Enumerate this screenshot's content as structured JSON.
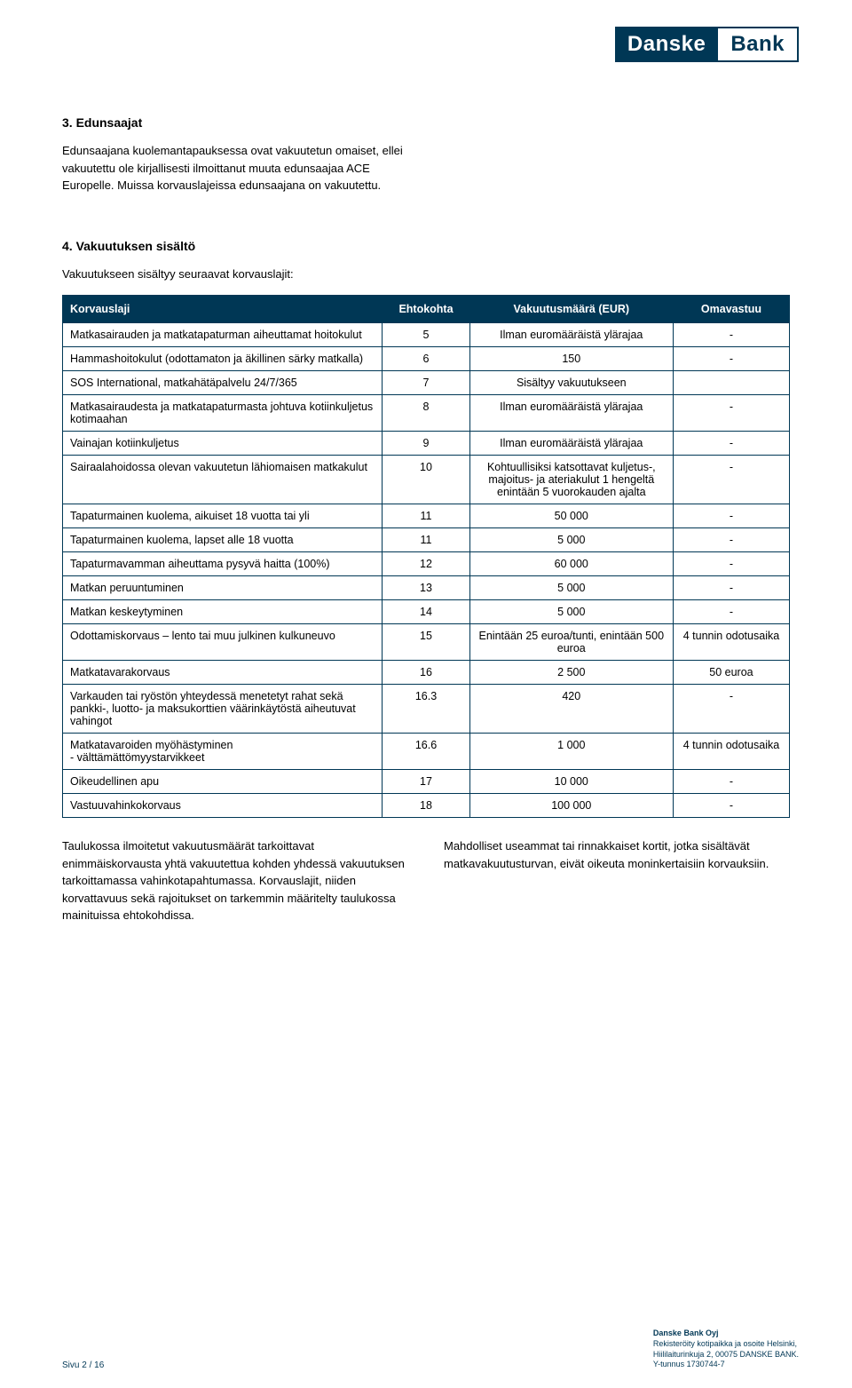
{
  "logo": {
    "left": "Danske",
    "right": "Bank"
  },
  "section3": {
    "heading": "3. Edunsaajat",
    "body": "Edunsaajana kuolemantapauksessa ovat vakuutetun omaiset, ellei vakuutettu ole kirjallisesti ilmoittanut muuta edunsaajaa ACE Europelle. Muissa korvauslajeissa edunsaajana on vakuutettu."
  },
  "section4": {
    "heading": "4. Vakuutuksen sisältö",
    "intro": "Vakuutukseen sisältyy seuraavat korvauslajit:"
  },
  "table": {
    "headers": [
      "Korvauslaji",
      "Ehtokohta",
      "Vakuutusmäärä (EUR)",
      "Omavastuu"
    ],
    "rows": [
      [
        "Matkasairauden ja matkatapaturman aiheuttamat hoitokulut",
        "5",
        "Ilman euromääräistä ylärajaa",
        "-"
      ],
      [
        "Hammashoitokulut (odottamaton ja äkillinen särky matkalla)",
        "6",
        "150",
        "-"
      ],
      [
        "SOS International, matkahätäpalvelu 24/7/365",
        "7",
        "Sisältyy vakuutukseen",
        ""
      ],
      [
        "Matkasairaudesta ja matkatapaturmasta johtuva kotiinkuljetus kotimaahan",
        "8",
        "Ilman euromääräistä ylärajaa",
        "-"
      ],
      [
        "Vainajan kotiinkuljetus",
        "9",
        "Ilman euromääräistä ylärajaa",
        "-"
      ],
      [
        "Sairaalahoidossa olevan vakuutetun lähiomaisen matkakulut",
        "10",
        "Kohtuullisiksi katsottavat kuljetus-, majoitus- ja ateriakulut 1 hengeltä enintään 5 vuorokauden ajalta",
        "-"
      ],
      [
        "Tapaturmainen kuolema, aikuiset 18 vuotta tai yli",
        "11",
        "50 000",
        "-"
      ],
      [
        "Tapaturmainen kuolema, lapset alle 18 vuotta",
        "11",
        "5 000",
        "-"
      ],
      [
        "Tapaturmavamman aiheuttama pysyvä haitta (100%)",
        "12",
        "60 000",
        "-"
      ],
      [
        "Matkan peruuntuminen",
        "13",
        "5 000",
        "-"
      ],
      [
        "Matkan keskeytyminen",
        "14",
        "5 000",
        "-"
      ],
      [
        "Odottamiskorvaus – lento tai muu julkinen kulkuneuvo",
        "15",
        "Enintään 25 euroa/tunti, enintään 500 euroa",
        "4 tunnin odotusaika"
      ],
      [
        "Matkatavarakorvaus",
        "16",
        "2 500",
        "50 euroa"
      ],
      [
        "Varkauden tai ryöstön yhteydessä menetetyt rahat sekä pankki-, luotto- ja maksukorttien väärinkäytöstä aiheutuvat vahingot",
        "16.3",
        "420",
        "-"
      ],
      [
        "Matkatavaroiden myöhästyminen\n- välttämättömyystarvikkeet",
        "16.6",
        "1 000",
        "4 tunnin odotusaika"
      ],
      [
        "Oikeudellinen apu",
        "17",
        "10 000",
        "-"
      ],
      [
        "Vastuuvahinkokorvaus",
        "18",
        "100 000",
        "-"
      ]
    ]
  },
  "belowTable": {
    "left": "Taulukossa ilmoitetut vakuutusmäärät tarkoittavat enimmäiskorvausta yhtä vakuutettua kohden yhdessä vakuutuksen tarkoittamassa vahinkotapahtumassa. Korvauslajit, niiden korvattavuus sekä rajoitukset on tarkemmin määritelty taulukossa mainituissa ehtokohdissa.",
    "right": "Mahdolliset useammat tai rinnakkaiset kortit, jotka sisältävät matkavakuutusturvan, eivät oikeuta moninkertaisiin korvauksiin."
  },
  "footer": {
    "left": "Sivu 2 / 16",
    "right1": "Danske Bank Oyj",
    "right2": "Rekisteröity kotipaikka ja osoite Helsinki,",
    "right3": "Hiililaiturinkuja 2, 00075 DANSKE BANK.",
    "right4": "Y-tunnus 1730744-7"
  }
}
